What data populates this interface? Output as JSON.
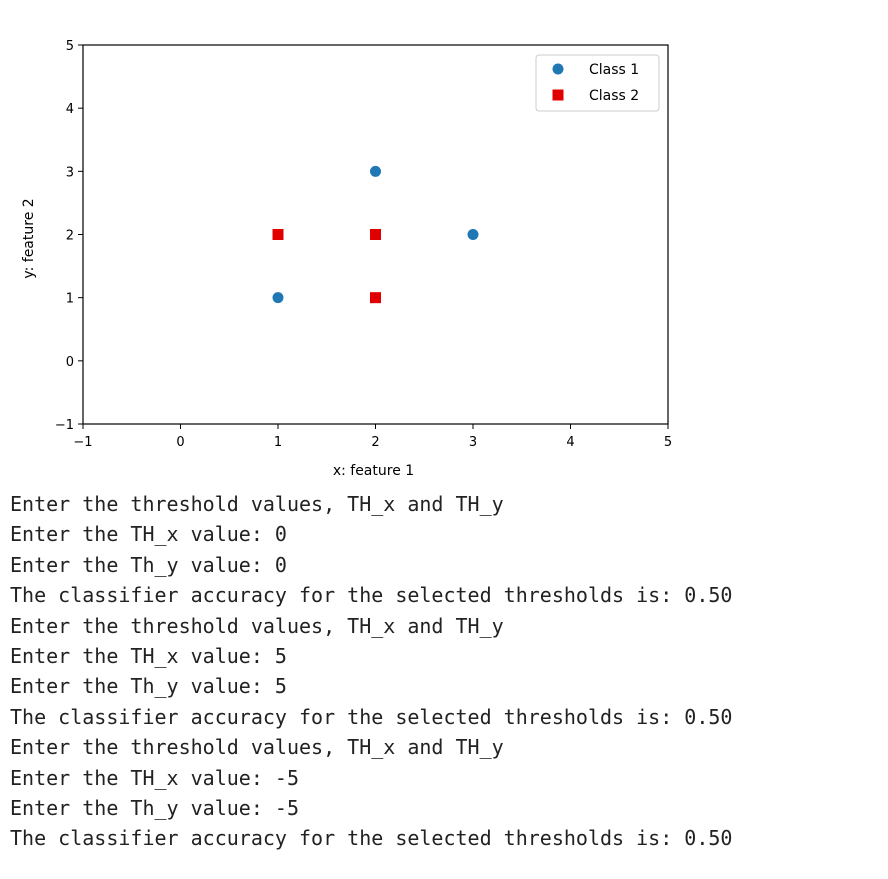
{
  "chart_data": {
    "type": "scatter",
    "xlabel": "x: feature 1",
    "ylabel": "y: feature 2",
    "xlim": [
      -1,
      5
    ],
    "ylim": [
      -1,
      5
    ],
    "xticks": [
      "−1",
      "0",
      "1",
      "2",
      "3",
      "4",
      "5"
    ],
    "yticks": [
      "−1",
      "0",
      "1",
      "2",
      "3",
      "4",
      "5"
    ],
    "grid": false,
    "legend": "top-right",
    "series": [
      {
        "name": "Class 1",
        "marker": "circle",
        "color": "#1f77b4",
        "points": [
          [
            1,
            1
          ],
          [
            2,
            3
          ],
          [
            3,
            2
          ]
        ]
      },
      {
        "name": "Class 2",
        "marker": "square",
        "color": "#e00000",
        "points": [
          [
            1,
            2
          ],
          [
            2,
            2
          ],
          [
            2,
            1
          ]
        ]
      }
    ]
  },
  "console": {
    "lines": [
      "Enter the threshold values, TH_x and TH_y",
      "Enter the TH_x value: 0",
      "Enter the Th_y value: 0",
      "The classifier accuracy for the selected thresholds is: 0.50",
      "Enter the threshold values, TH_x and TH_y",
      "Enter the TH_x value: 5",
      "Enter the Th_y value: 5",
      "The classifier accuracy for the selected thresholds is: 0.50",
      "Enter the threshold values, TH_x and TH_y",
      "Enter the TH_x value: -5",
      "Enter the Th_y value: -5",
      "The classifier accuracy for the selected thresholds is: 0.50"
    ]
  }
}
